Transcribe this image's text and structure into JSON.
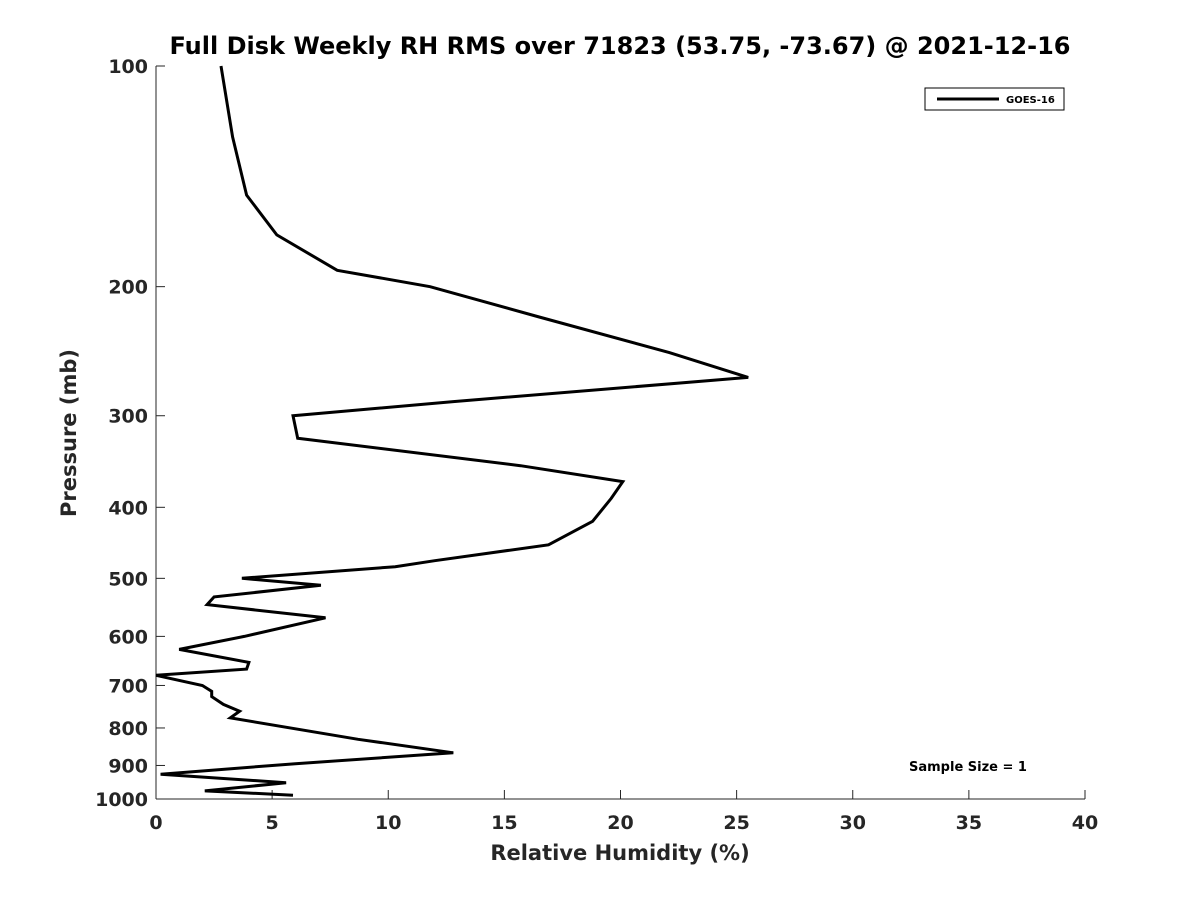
{
  "chart_data": {
    "type": "line",
    "title": "Full Disk Weekly RH RMS over 71823 (53.75, -73.67) @ 2021-12-16",
    "xlabel": "Relative Humidity (%)",
    "ylabel": "Pressure (mb)",
    "xlim": [
      0,
      40
    ],
    "ylim": [
      100,
      1000
    ],
    "y_scale": "log",
    "y_reversed": true,
    "x_ticks": [
      0,
      5,
      10,
      15,
      20,
      25,
      30,
      35,
      40
    ],
    "y_ticks": [
      100,
      200,
      300,
      400,
      500,
      600,
      700,
      800,
      900,
      1000
    ],
    "grid": false,
    "legend_position": "top-right",
    "series": [
      {
        "name": "GOES-16",
        "color": "#000000",
        "x": [
          2.8,
          3.3,
          3.9,
          5.2,
          7.8,
          11.8,
          16.5,
          22.1,
          25.5,
          12.8,
          5.9,
          6.1,
          15.7,
          20.1,
          19.6,
          18.8,
          16.9,
          12.0,
          10.3,
          3.7,
          7.1,
          2.5,
          2.2,
          7.3,
          3.8,
          1.0,
          4.0,
          3.9,
          0.0,
          2.0,
          2.4,
          2.4,
          2.9,
          3.6,
          3.2,
          8.7,
          12.8,
          6.0,
          0.2,
          5.6,
          2.1,
          5.9
        ],
        "y": [
          100,
          125,
          150,
          170,
          190,
          200,
          220,
          246,
          266,
          287,
          300,
          322,
          351,
          369,
          389,
          418,
          450,
          473,
          482,
          500,
          511,
          530,
          543,
          566,
          600,
          625,
          651,
          665,
          678,
          700,
          713,
          725,
          743,
          759,
          775,
          829,
          865,
          895,
          925,
          950,
          975,
          988
        ]
      }
    ],
    "annotations": [
      "Sample Size = 1"
    ]
  }
}
